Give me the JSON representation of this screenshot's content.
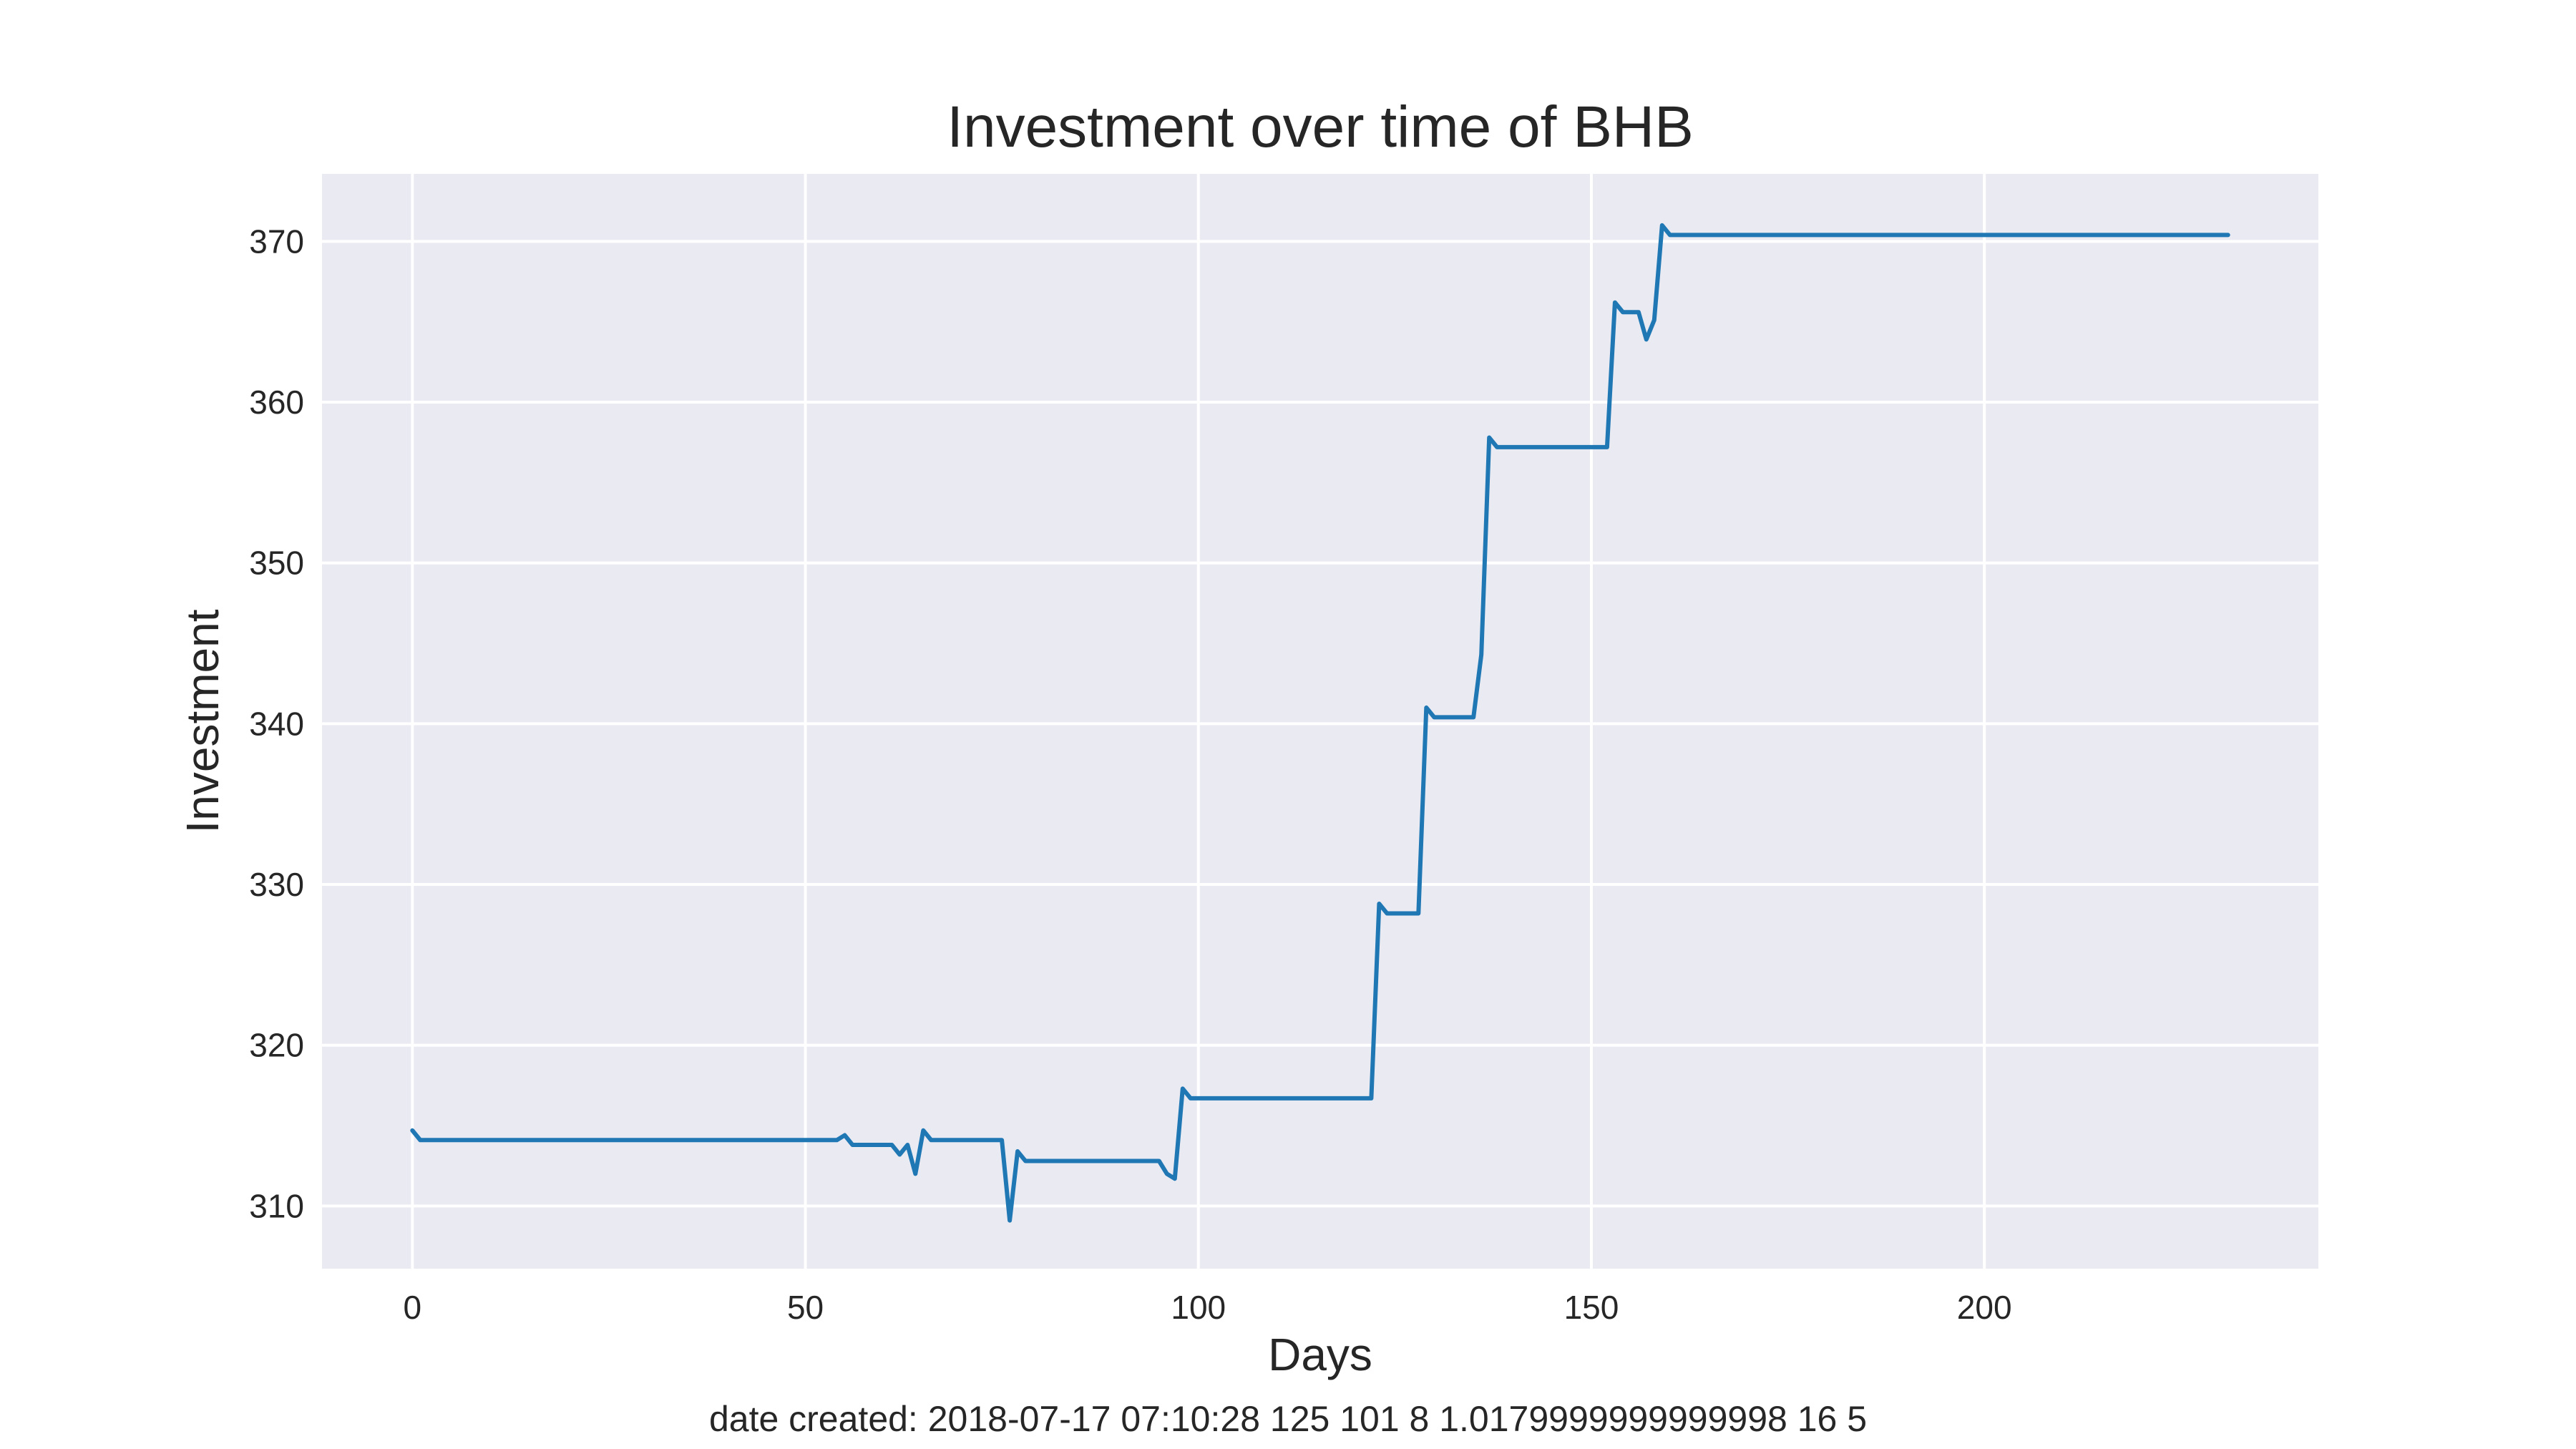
{
  "chart_data": {
    "type": "line",
    "title": "Investment over time of BHB",
    "xlabel": "Days",
    "ylabel": "Investment",
    "xlim": [
      -11.5,
      242.5
    ],
    "ylim": [
      306.1,
      374.2
    ],
    "x_ticks": [
      0,
      50,
      100,
      150,
      200
    ],
    "y_ticks": [
      310,
      320,
      330,
      340,
      350,
      360,
      370
    ],
    "grid": true,
    "background": "#eaeaf2",
    "series": [
      {
        "color": "#1f77b4",
        "points": [
          [
            0,
            314.7
          ],
          [
            1,
            314.1
          ],
          [
            2,
            314.1
          ],
          [
            54,
            314.1
          ],
          [
            55,
            314.4
          ],
          [
            56,
            313.8
          ],
          [
            61,
            313.8
          ],
          [
            62,
            313.2
          ],
          [
            63,
            313.8
          ],
          [
            64,
            312.0
          ],
          [
            65,
            314.7
          ],
          [
            66,
            314.1
          ],
          [
            75,
            314.1
          ],
          [
            76,
            309.1
          ],
          [
            77,
            313.4
          ],
          [
            78,
            312.8
          ],
          [
            95,
            312.8
          ],
          [
            96,
            312.0
          ],
          [
            97,
            311.7
          ],
          [
            98,
            317.3
          ],
          [
            99,
            316.7
          ],
          [
            122,
            316.7
          ],
          [
            123,
            328.8
          ],
          [
            124,
            328.2
          ],
          [
            128,
            328.2
          ],
          [
            129,
            341.0
          ],
          [
            130,
            340.4
          ],
          [
            135,
            340.4
          ],
          [
            136,
            344.3
          ],
          [
            137,
            357.8
          ],
          [
            138,
            357.2
          ],
          [
            152,
            357.2
          ],
          [
            153,
            366.2
          ],
          [
            154,
            365.6
          ],
          [
            156,
            365.6
          ],
          [
            157,
            363.9
          ],
          [
            158,
            365.1
          ],
          [
            159,
            371.0
          ],
          [
            160,
            370.4
          ],
          [
            231,
            370.4
          ]
        ]
      }
    ]
  },
  "footnote": "date created: 2018-07-17 07:10:28 125 101 8 1.0179999999999998 16 5"
}
